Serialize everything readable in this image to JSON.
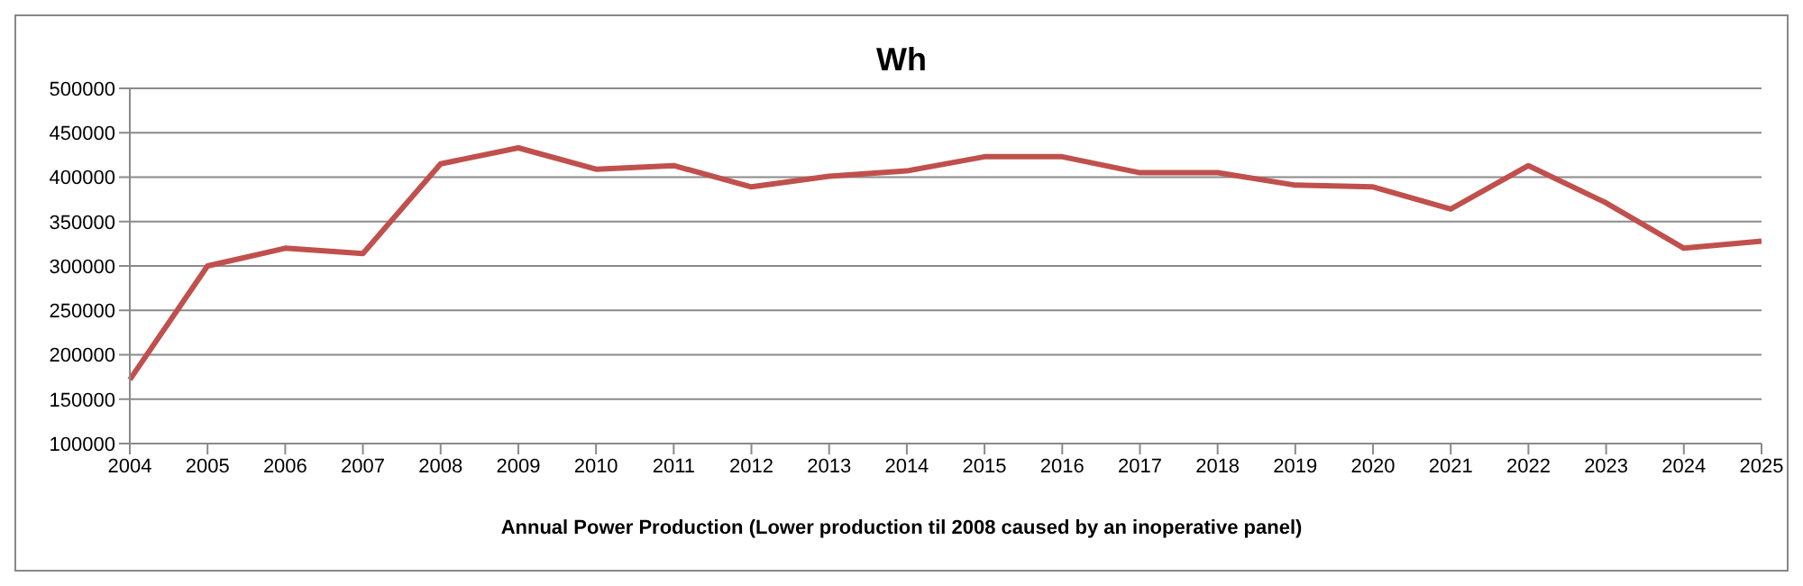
{
  "chart_data": {
    "type": "line",
    "title": "Wh",
    "xlabel": "Annual Power Production (Lower production til 2008 caused by an inoperative panel)",
    "categories": [
      "2004",
      "2005",
      "2006",
      "2007",
      "2008",
      "2009",
      "2010",
      "2011",
      "2012",
      "2013",
      "2014",
      "2015",
      "2016",
      "2017",
      "2018",
      "2019",
      "2020",
      "2021",
      "2022",
      "2023",
      "2024",
      "2025"
    ],
    "series": [
      {
        "color": "#c0504d",
        "values": [
          172000,
          300000,
          320000,
          314000,
          415000,
          433000,
          409000,
          413000,
          389000,
          401000,
          407000,
          423000,
          423000,
          405000,
          405000,
          391000,
          389000,
          364000,
          413000,
          371000,
          320000,
          328000
        ]
      }
    ],
    "ylim": [
      100000,
      500000
    ],
    "yticks": [
      100000,
      150000,
      200000,
      250000,
      300000,
      350000,
      400000,
      450000,
      500000
    ],
    "grid": "y",
    "legend": false,
    "marker": "none",
    "line_style": "solid"
  }
}
